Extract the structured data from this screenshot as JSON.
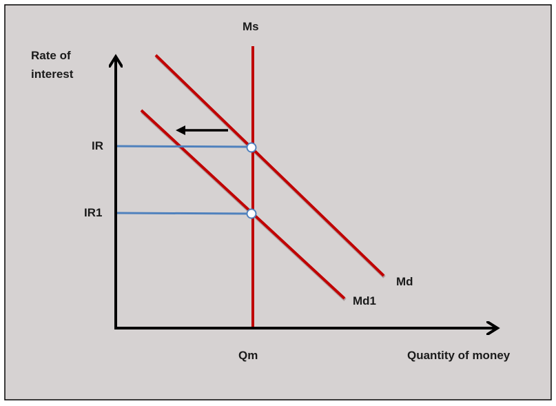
{
  "axes": {
    "y_label": "Rate of interest",
    "x_label": "Quantity of money"
  },
  "curves": {
    "money_supply": "Ms",
    "money_demand": "Md",
    "money_demand_new": "Md1"
  },
  "levels": {
    "interest_rate": "IR",
    "interest_rate_new": "IR1",
    "quantity": "Qm"
  }
}
